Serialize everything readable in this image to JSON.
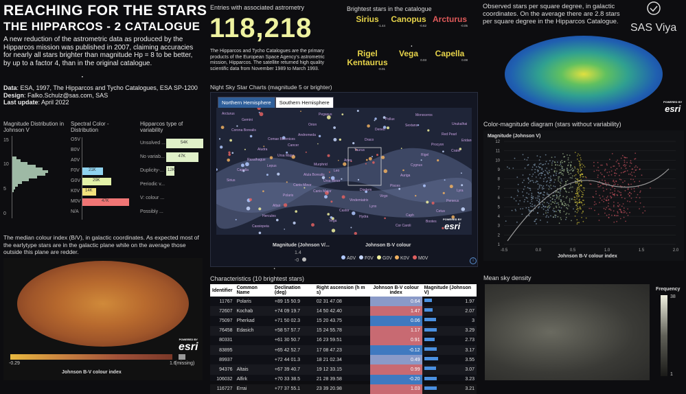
{
  "header": {
    "title_line1": "REACHING FOR THE STARS",
    "title_line2": "THE   HIPPARCOS - 2  CATALOGUE",
    "description": "A new reduction of the astrometric data as produced by the Hipparcos mission was published in 2007, claiming accuracies for nearly all stars brighter than magnitude Hp = 8 to be better, by up to a factor 4, than in the original catalogue.",
    "data_label": "Data",
    "data_value": ": ESA, 1997, The Hipparcos and Tycho Catalogues, ESA SP-1200",
    "design_label": "Design",
    "design_value": ": Falko.Schulz@sas.com, SAS",
    "update_label": "Last update",
    "update_value": ": April 2022"
  },
  "kpi": {
    "label": "Entries with associated astrometry",
    "value": "118,218",
    "description": "The Hipparcos and Tycho Catalogues are the primary products of the European Space Agency's astrometric mission, Hipparcos. The satellite returned high quality scientific data from November 1989 to March 1993."
  },
  "brightest": {
    "title": "Brightest stars in the catalogue",
    "stars": [
      {
        "name": "Sirius",
        "value": "-1.44",
        "color": "#e6d34a"
      },
      {
        "name": "Canopus",
        "value": "-0.62",
        "color": "#e6d34a"
      },
      {
        "name": "Arcturus",
        "value": "-0.05",
        "color": "#e05a5a"
      },
      {
        "name": "Rigel Kentaurus",
        "value": "-0.01",
        "color": "#e6d34a"
      },
      {
        "name": "Vega",
        "value": "0.03",
        "color": "#e6d34a"
      },
      {
        "name": "Capella",
        "value": "0.08",
        "color": "#e6d34a"
      }
    ]
  },
  "density_note": "Observed stars per square degree, in galactic coordinates. On the average there are 2.8 stars per square degree in the Hipparcos Catalogue.",
  "brand": {
    "name": "SAS Viya",
    "esri_powered": "POWERED BY",
    "esri": "esri"
  },
  "mag_dist": {
    "title": "Magnitude Distribution in Johnson V",
    "ticks": [
      "15",
      "10",
      "5",
      "0"
    ]
  },
  "spectral": {
    "title": "Spectral Color - Distribution",
    "categories": [
      "O5V",
      "B0V",
      "A0V",
      "F0V",
      "G0V",
      "K0V",
      "M0V",
      "N/A"
    ],
    "bars": [
      {
        "cat": "F0V",
        "label": "21K",
        "value": 21,
        "color": "#8fd3ef"
      },
      {
        "cat": "G0V",
        "label": "29K",
        "value": 29,
        "color": "#e3f2a8"
      },
      {
        "cat": "K0V",
        "label": "14K",
        "value": 14,
        "color": "#f3e27c"
      },
      {
        "cat": "M0V",
        "label": "47K",
        "value": 47,
        "color": "#f07575"
      }
    ]
  },
  "variability": {
    "title": "Hipparcos type of variability",
    "items": [
      {
        "label": "Unsolved ...",
        "value_label": "54K",
        "value": 54
      },
      {
        "label": "No variab...",
        "value_label": "47K",
        "value": 47
      },
      {
        "label": "Duplicity-...",
        "value_label": "12K",
        "value": 12
      },
      {
        "label": "Periodic v...",
        "value_label": "",
        "value": 0
      },
      {
        "label": "V: colour ...",
        "value_label": "",
        "value": 0
      },
      {
        "label": "Possibly ...",
        "value_label": "",
        "value": 0
      }
    ]
  },
  "median_note": "The median colour index (B/V), in galactic coordinates. As expected most of the earlytype stars are in the galactic plane while on the average those outside this plane are redder.",
  "median_legend": {
    "min": "-0.29",
    "max": "1.6",
    "missing": "(missing)",
    "title": "Johnson B-V colour index"
  },
  "sky_chart": {
    "title": "Night Sky Star Charts (magnitude 5 or brighter)",
    "tabs": [
      "Northern Hemisphere",
      "Southern Hemisphere"
    ],
    "legend_mag_title": "Magnitude (Johnson V/...",
    "legend_mag_values": [
      "1.4",
      "-0"
    ],
    "legend_color_title": "Johnson B-V colour",
    "legend_color_items": [
      {
        "label": "A0V",
        "color": "#b0c8ff"
      },
      {
        "label": "F0V",
        "color": "#c8d8ff"
      },
      {
        "label": "G0V",
        "color": "#f2f2a0"
      },
      {
        "label": "K0V",
        "color": "#f0b060"
      },
      {
        "label": "M0V",
        "color": "#e06060"
      }
    ],
    "labels": [
      "Arcturus",
      "Comae Berenices",
      "Murphrid",
      "Diadem",
      "Caph",
      "Unukalhai",
      "Aludra",
      "Alula Borealis",
      "Vindemiatrix",
      "Cor Caroli",
      "Red Pearl",
      "Rasalhague",
      "Canis Minor",
      "Castor",
      "Pollux",
      "Procyon",
      "Capella",
      "Polaris",
      "Vega",
      "Deneb",
      "Rigel",
      "Sirius",
      "Altair",
      "Pegasus",
      "Draco",
      "Cygnus",
      "Lyra",
      "Hercules",
      "Orion",
      "Taurus",
      "Auriga",
      "Perseus",
      "Cassiopeia",
      "Andromeda",
      "Aries",
      "Pisces",
      "Cetus",
      "Gemini",
      "Cancer",
      "Leo",
      "Virgo",
      "Bootes",
      "Corona Borealis",
      "Ursa Major",
      "Ursa Minor",
      "Lynx",
      "Monoceros",
      "Eridanus",
      "Lepus",
      "Canis Major",
      "Hydra",
      "Sextans",
      "Crater"
    ]
  },
  "cm_diagram": {
    "title": "Color-magnitude diagram (stars without variability)",
    "ylabel": "Magnitude (Johnson V)",
    "xlabel": "Johnson B-V colour index",
    "yticks": [
      "12",
      "11",
      "10",
      "9",
      "8",
      "7",
      "6",
      "5",
      "4",
      "3",
      "2",
      "1"
    ],
    "xticks": [
      "-0.5",
      "0.0",
      "0.5",
      "1.0",
      "1.5",
      "2.0"
    ]
  },
  "characteristics": {
    "title": "Characteristics (10 brightest stars)",
    "columns": [
      "Identifier",
      "Common Name",
      "Declination (deg)",
      "Right ascension (h m s)",
      "Johnson B-V colour index",
      "Magnitude (Johnson V)"
    ],
    "rows": [
      {
        "id": "11767",
        "name": "Polaris",
        "dec": "+89 15 50.9",
        "ra": "02 31 47.08",
        "bv": "0.64",
        "bv_num": 0.64,
        "mag": "1.97",
        "mag_num": 1.97
      },
      {
        "id": "72607",
        "name": "Kochab",
        "dec": "+74 09 19.7",
        "ra": "14 50 42.40",
        "bv": "1.47",
        "bv_num": 1.47,
        "mag": "2.07",
        "mag_num": 2.07
      },
      {
        "id": "75097",
        "name": "Pherkad",
        "dec": "+71 50 02.3",
        "ra": "15 20 43.75",
        "bv": "0.06",
        "bv_num": 0.06,
        "mag": "3",
        "mag_num": 3
      },
      {
        "id": "76458",
        "name": "Edasich",
        "dec": "+58 57 57.7",
        "ra": "15 24 55.78",
        "bv": "1.17",
        "bv_num": 1.17,
        "mag": "3.29",
        "mag_num": 3.29
      },
      {
        "id": "80331",
        "name": "",
        "dec": "+61 30 50.7",
        "ra": "16 23 59.51",
        "bv": "0.91",
        "bv_num": 0.91,
        "mag": "2.73",
        "mag_num": 2.73
      },
      {
        "id": "83895",
        "name": "",
        "dec": "+65 42 52.7",
        "ra": "17 08 47.23",
        "bv": "-0.12",
        "bv_num": -0.12,
        "mag": "3.17",
        "mag_num": 3.17
      },
      {
        "id": "89937",
        "name": "",
        "dec": "+72 44 01.3",
        "ra": "18 21 02.34",
        "bv": "0.49",
        "bv_num": 0.49,
        "mag": "3.55",
        "mag_num": 3.55
      },
      {
        "id": "94376",
        "name": "Altais",
        "dec": "+67 39 40.7",
        "ra": "19 12 33.15",
        "bv": "0.99",
        "bv_num": 0.99,
        "mag": "3.07",
        "mag_num": 3.07
      },
      {
        "id": "106032",
        "name": "Alfirk",
        "dec": "+70 33 38.5",
        "ra": "21 28 39.58",
        "bv": "-0.20",
        "bv_num": -0.2,
        "mag": "3.23",
        "mag_num": 3.23
      },
      {
        "id": "116727",
        "name": "Errai",
        "dec": "+77 37 55.1",
        "ra": "23 39 20.98",
        "bv": "1.03",
        "bv_num": 1.03,
        "mag": "3.21",
        "mag_num": 3.21
      }
    ]
  },
  "mean_density": {
    "title": "Mean sky density",
    "legend_title": "Frequency",
    "legend_max": "38",
    "legend_min": "1"
  }
}
